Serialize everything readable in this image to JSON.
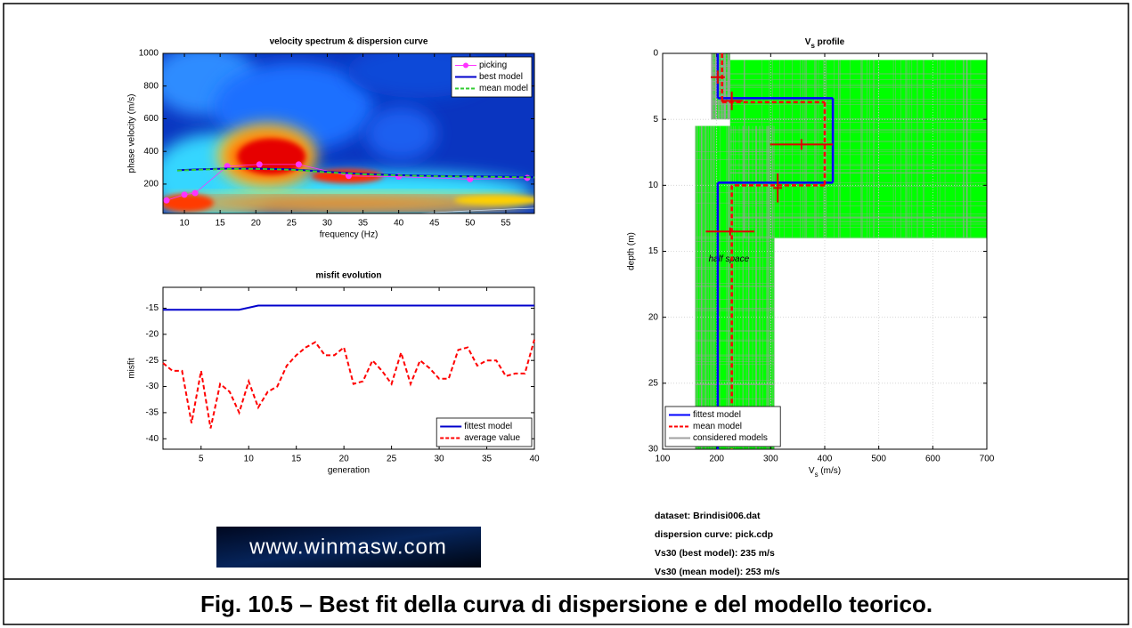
{
  "chart_data": [
    {
      "type": "line",
      "title": "velocity spectrum & dispersion curve",
      "x_label": "frequency (Hz)",
      "y_label": "phase velocity (m/s)",
      "xlim": [
        7,
        59
      ],
      "xticks": [
        10,
        15,
        20,
        25,
        30,
        35,
        40,
        45,
        50,
        55
      ],
      "ylim": [
        20,
        1000
      ],
      "yticks": [
        200,
        400,
        600,
        800,
        1000
      ],
      "legend": "upper right",
      "series": [
        {
          "name": "picking",
          "color": "#ff33ff",
          "marker": true,
          "x": [
            7.5,
            10,
            11.5,
            16,
            20.5,
            26,
            33,
            40,
            50,
            58
          ],
          "values": [
            100,
            135,
            145,
            310,
            320,
            320,
            250,
            245,
            230,
            238
          ]
        },
        {
          "name": "best model",
          "color": "#0000cc",
          "x": [
            9,
            12,
            16,
            20,
            25,
            30,
            35,
            40,
            45,
            50,
            55,
            59
          ],
          "values": [
            285,
            290,
            295,
            295,
            290,
            275,
            262,
            255,
            250,
            248,
            245,
            243
          ]
        },
        {
          "name": "mean model",
          "color": "#33cc33",
          "dash": true,
          "x": [
            9,
            12,
            16,
            20,
            25,
            30,
            35,
            40,
            45,
            50,
            55,
            59
          ],
          "values": [
            283,
            288,
            293,
            293,
            288,
            272,
            260,
            253,
            248,
            246,
            243,
            241
          ]
        }
      ]
    },
    {
      "type": "line",
      "title": "misfit evolution",
      "x_label": "generation",
      "y_label": "misfit",
      "xlim": [
        1,
        40
      ],
      "xticks": [
        5,
        10,
        15,
        20,
        25,
        30,
        35,
        40
      ],
      "ylim": [
        -42,
        -11
      ],
      "yticks": [
        -40,
        -35,
        -30,
        -25,
        -20,
        -15
      ],
      "legend": "lower right",
      "series": [
        {
          "name": "fittest model",
          "color": "#0000cc",
          "x": [
            1,
            9,
            11,
            40
          ],
          "values": [
            -15.3,
            -15.3,
            -14.5,
            -14.5
          ]
        },
        {
          "name": "average value",
          "color": "#ff0000",
          "dash": true,
          "x": [
            1,
            2,
            3,
            4,
            5,
            6,
            7,
            8,
            9,
            10,
            11,
            12,
            13,
            14,
            15,
            16,
            17,
            18,
            19,
            20,
            21,
            22,
            23,
            24,
            25,
            26,
            27,
            28,
            29,
            30,
            31,
            32,
            33,
            34,
            35,
            36,
            37,
            38,
            39,
            40
          ],
          "values": [
            -25.5,
            -27,
            -27,
            -37,
            -27,
            -38,
            -29.5,
            -31,
            -35,
            -29,
            -34,
            -31,
            -30,
            -26,
            -24,
            -22.5,
            -21.5,
            -24,
            -24,
            -22.5,
            -29.5,
            -29,
            -25,
            -27,
            -29.5,
            -23.5,
            -29.5,
            -25,
            -26.5,
            -28.5,
            -28.5,
            -23,
            -22.5,
            -26,
            -25,
            -25,
            -28,
            -27.5,
            -27.5,
            -21
          ]
        }
      ]
    },
    {
      "type": "profile",
      "title": {
        "main": "V",
        "sub": "s",
        "rest": " profile"
      },
      "x_label": {
        "main": "V",
        "sub": "s",
        "rest": " (m/s)"
      },
      "y_label": "depth (m)",
      "xlim": [
        100,
        700
      ],
      "xticks": [
        100,
        200,
        300,
        400,
        500,
        600,
        700
      ],
      "ylim": [
        0,
        30
      ],
      "yticks": [
        0,
        5,
        10,
        15,
        20,
        25,
        30
      ],
      "y_reversed": true,
      "grid": true,
      "legend": "lower left",
      "series": [
        {
          "name": "fittest model",
          "color": "#0000ff",
          "tops": [
            0,
            3.4,
            9.8
          ],
          "values": [
            202,
            415,
            202
          ]
        },
        {
          "name": "mean model",
          "color": "#ff0000",
          "dash": true,
          "tops": [
            0,
            3.7,
            10
          ],
          "values": [
            210,
            400,
            228
          ]
        },
        {
          "name": "considered models",
          "color": "#a0a0a0"
        }
      ],
      "error_bars": [
        {
          "vs": 202,
          "vs_err": 13,
          "depth": 1.8,
          "depth_err": 0.5
        },
        {
          "vs": 228,
          "vs_err": 20,
          "depth": 3.6,
          "depth_err": 0.7
        },
        {
          "vs": 357,
          "vs_err": 58,
          "depth": 6.9,
          "depth_err": 0.4
        },
        {
          "vs": 313,
          "vs_err": 8,
          "depth": 10.2,
          "depth_err": 1.1
        },
        {
          "vs": 225,
          "vs_err": 45,
          "depth": 13.5,
          "depth_err": 0.3
        }
      ],
      "annotation": "half space"
    }
  ],
  "info": [
    "dataset: Brindisi006.dat",
    "dispersion curve: pick.cdp",
    "Vs30 (best model): 235 m/s",
    "Vs30 (mean model): 253 m/s"
  ],
  "logo": "www.winmasw.com",
  "caption": "Fig. 10.5 – Best fit della curva di dispersione e del modello teorico."
}
